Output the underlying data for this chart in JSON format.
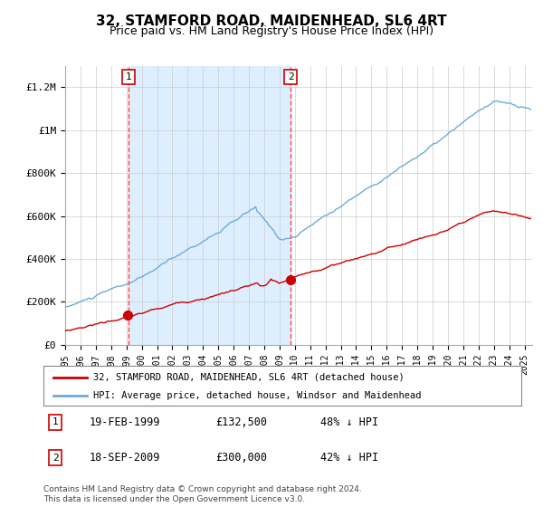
{
  "title": "32, STAMFORD ROAD, MAIDENHEAD, SL6 4RT",
  "subtitle": "Price paid vs. HM Land Registry's House Price Index (HPI)",
  "legend_line1": "32, STAMFORD ROAD, MAIDENHEAD, SL6 4RT (detached house)",
  "legend_line2": "HPI: Average price, detached house, Windsor and Maidenhead",
  "annotation1_label": "1",
  "annotation1_date": "19-FEB-1999",
  "annotation1_price": "£132,500",
  "annotation1_hpi": "48% ↓ HPI",
  "annotation2_label": "2",
  "annotation2_date": "18-SEP-2009",
  "annotation2_price": "£300,000",
  "annotation2_hpi": "42% ↓ HPI",
  "footer": "Contains HM Land Registry data © Crown copyright and database right 2024.\nThis data is licensed under the Open Government Licence v3.0.",
  "hpi_color": "#6baed6",
  "price_color": "#cc0000",
  "dot_color": "#cc0000",
  "vline_color": "#ff4444",
  "shade_color": "#ddeeff",
  "ylim": [
    0,
    1300000
  ],
  "yticks": [
    0,
    200000,
    400000,
    600000,
    800000,
    1000000,
    1200000
  ],
  "ytick_labels": [
    "£0",
    "£200K",
    "£400K",
    "£600K",
    "£800K",
    "£1M",
    "£1.2M"
  ],
  "sale1_year": 1999.13,
  "sale1_price": 132500,
  "sale2_year": 2009.72,
  "sale2_price": 300000,
  "xstart": 1995,
  "xend": 2025.5
}
